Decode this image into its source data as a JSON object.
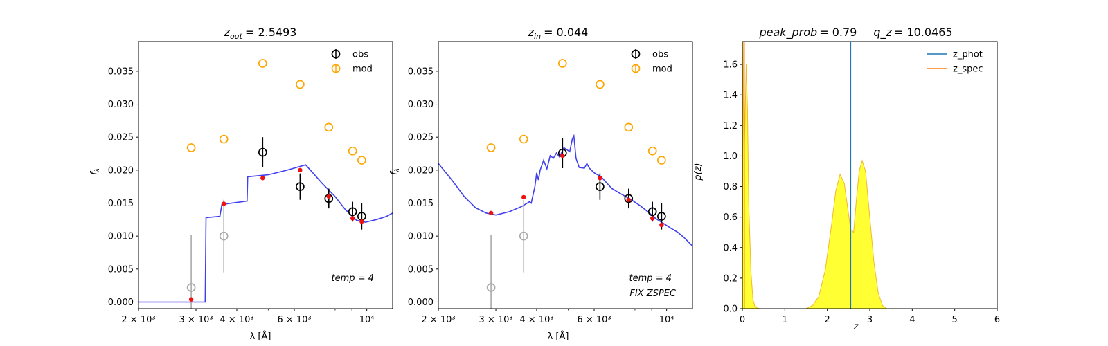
{
  "chart_data": [
    {
      "type": "scatter",
      "title_base": "z",
      "title_sub": "out",
      "title_value": "= 2.5493",
      "xlabel": "λ [Å]",
      "ylabel": "f",
      "ylabel_sub": "λ",
      "x_scale": "log",
      "xlim": [
        2000,
        12000
      ],
      "ylim": [
        -0.001,
        0.0395
      ],
      "xticks": [
        {
          "v": 2000,
          "label": "2 × 10³"
        },
        {
          "v": 3000,
          "label": "3 × 10³"
        },
        {
          "v": 4000,
          "label": "4 × 10³"
        },
        {
          "v": 6000,
          "label": "6 × 10³"
        },
        {
          "v": 10000,
          "label": "10⁴"
        }
      ],
      "yticks": [
        "0.000",
        "0.005",
        "0.010",
        "0.015",
        "0.020",
        "0.025",
        "0.030",
        "0.035"
      ],
      "ytick_values": [
        0,
        0.005,
        0.01,
        0.015,
        0.02,
        0.025,
        0.03,
        0.035
      ],
      "legend": [
        {
          "name": "obs",
          "color": "#000000"
        },
        {
          "name": "mod",
          "color": "#ffa500"
        }
      ],
      "annotations": [
        "temp = 4"
      ],
      "obs": [
        {
          "x": 2900,
          "y": 0.0022,
          "err": 0.008,
          "color": "#aaaaaa"
        },
        {
          "x": 3650,
          "y": 0.01,
          "err": 0.0055,
          "color": "#aaaaaa"
        },
        {
          "x": 4800,
          "y": 0.0227,
          "err": 0.0023,
          "color": "#000000"
        },
        {
          "x": 6250,
          "y": 0.0175,
          "err": 0.002,
          "color": "#000000"
        },
        {
          "x": 7650,
          "y": 0.0157,
          "err": 0.0015,
          "color": "#000000"
        },
        {
          "x": 9050,
          "y": 0.0137,
          "err": 0.0015,
          "color": "#000000"
        },
        {
          "x": 9650,
          "y": 0.013,
          "err": 0.002,
          "color": "#000000"
        }
      ],
      "mod": [
        {
          "x": 2900,
          "y": 0.0234
        },
        {
          "x": 3650,
          "y": 0.0247
        },
        {
          "x": 4800,
          "y": 0.0362
        },
        {
          "x": 6250,
          "y": 0.033
        },
        {
          "x": 7650,
          "y": 0.0265
        },
        {
          "x": 9050,
          "y": 0.0229
        },
        {
          "x": 9650,
          "y": 0.0215
        }
      ],
      "model_points": [
        {
          "x": 2900,
          "y": 0.0004
        },
        {
          "x": 3650,
          "y": 0.0149
        },
        {
          "x": 4800,
          "y": 0.0188
        },
        {
          "x": 6250,
          "y": 0.02
        },
        {
          "x": 7650,
          "y": 0.016
        },
        {
          "x": 9050,
          "y": 0.0127
        },
        {
          "x": 9650,
          "y": 0.0122
        }
      ],
      "sed": [
        [
          2000,
          0.0
        ],
        [
          3200,
          0.0
        ],
        [
          3220,
          0.0128
        ],
        [
          3550,
          0.013
        ],
        [
          3600,
          0.0148
        ],
        [
          4300,
          0.0153
        ],
        [
          4320,
          0.019
        ],
        [
          5000,
          0.0193
        ],
        [
          5700,
          0.02
        ],
        [
          6500,
          0.0208
        ],
        [
          7300,
          0.018
        ],
        [
          8000,
          0.016
        ],
        [
          8600,
          0.014
        ],
        [
          9300,
          0.0124
        ],
        [
          9900,
          0.0121
        ],
        [
          10700,
          0.0125
        ],
        [
          11500,
          0.013
        ],
        [
          12000,
          0.0135
        ]
      ]
    },
    {
      "type": "scatter",
      "title_base": "z",
      "title_sub": "in",
      "title_value": "= 0.044",
      "xlabel": "λ [Å]",
      "ylabel": "f",
      "ylabel_sub": "λ",
      "x_scale": "log",
      "xlim": [
        2000,
        12000
      ],
      "ylim": [
        -0.001,
        0.0395
      ],
      "xticks": [
        {
          "v": 2000,
          "label": "2 × 10³"
        },
        {
          "v": 3000,
          "label": "3 × 10³"
        },
        {
          "v": 4000,
          "label": "4 × 10³"
        },
        {
          "v": 6000,
          "label": "6 × 10³"
        },
        {
          "v": 10000,
          "label": "10⁴"
        }
      ],
      "yticks": [
        "0.000",
        "0.005",
        "0.010",
        "0.015",
        "0.020",
        "0.025",
        "0.030",
        "0.035"
      ],
      "ytick_values": [
        0,
        0.005,
        0.01,
        0.015,
        0.02,
        0.025,
        0.03,
        0.035
      ],
      "legend": [
        {
          "name": "obs",
          "color": "#000000"
        },
        {
          "name": "mod",
          "color": "#ffa500"
        }
      ],
      "annotations": [
        "temp = 4",
        "FIX ZSPEC"
      ],
      "obs": [
        {
          "x": 2900,
          "y": 0.0022,
          "err": 0.008,
          "color": "#aaaaaa"
        },
        {
          "x": 3650,
          "y": 0.01,
          "err": 0.0055,
          "color": "#aaaaaa"
        },
        {
          "x": 4800,
          "y": 0.0226,
          "err": 0.0023,
          "color": "#000000"
        },
        {
          "x": 6250,
          "y": 0.0175,
          "err": 0.002,
          "color": "#000000"
        },
        {
          "x": 7650,
          "y": 0.0157,
          "err": 0.0015,
          "color": "#000000"
        },
        {
          "x": 9050,
          "y": 0.0137,
          "err": 0.0015,
          "color": "#000000"
        },
        {
          "x": 9650,
          "y": 0.013,
          "err": 0.002,
          "color": "#000000"
        }
      ],
      "mod": [
        {
          "x": 2900,
          "y": 0.0234
        },
        {
          "x": 3650,
          "y": 0.0247
        },
        {
          "x": 4800,
          "y": 0.0362
        },
        {
          "x": 6250,
          "y": 0.033
        },
        {
          "x": 7650,
          "y": 0.0265
        },
        {
          "x": 9050,
          "y": 0.0229
        },
        {
          "x": 9650,
          "y": 0.0215
        }
      ],
      "model_points": [
        {
          "x": 2900,
          "y": 0.0135
        },
        {
          "x": 3650,
          "y": 0.0159
        },
        {
          "x": 4800,
          "y": 0.0222
        },
        {
          "x": 6250,
          "y": 0.0188
        },
        {
          "x": 7650,
          "y": 0.0155
        },
        {
          "x": 9050,
          "y": 0.0127
        },
        {
          "x": 9650,
          "y": 0.0117
        }
      ],
      "sed": [
        [
          2000,
          0.021
        ],
        [
          2200,
          0.0185
        ],
        [
          2400,
          0.016
        ],
        [
          2600,
          0.0143
        ],
        [
          2800,
          0.0135
        ],
        [
          3000,
          0.0132
        ],
        [
          3300,
          0.0137
        ],
        [
          3600,
          0.0145
        ],
        [
          3800,
          0.0152
        ],
        [
          3850,
          0.015
        ],
        [
          3950,
          0.0175
        ],
        [
          4000,
          0.0196
        ],
        [
          4050,
          0.0185
        ],
        [
          4100,
          0.02
        ],
        [
          4200,
          0.0215
        ],
        [
          4300,
          0.0202
        ],
        [
          4400,
          0.0222
        ],
        [
          4500,
          0.0218
        ],
        [
          4600,
          0.0226
        ],
        [
          4700,
          0.022
        ],
        [
          4850,
          0.0234
        ],
        [
          5050,
          0.0228
        ],
        [
          5150,
          0.0248
        ],
        [
          5200,
          0.0252
        ],
        [
          5280,
          0.0218
        ],
        [
          5400,
          0.0204
        ],
        [
          5600,
          0.0203
        ],
        [
          5700,
          0.021
        ],
        [
          5800,
          0.0203
        ],
        [
          6000,
          0.0196
        ],
        [
          6300,
          0.019
        ],
        [
          6800,
          0.0172
        ],
        [
          7300,
          0.0163
        ],
        [
          7800,
          0.0155
        ],
        [
          8300,
          0.0146
        ],
        [
          8800,
          0.0136
        ],
        [
          9300,
          0.0126
        ],
        [
          9800,
          0.0119
        ],
        [
          10300,
          0.0112
        ],
        [
          10800,
          0.0106
        ],
        [
          11300,
          0.0098
        ],
        [
          12000,
          0.0085
        ]
      ]
    },
    {
      "type": "area",
      "title_base": "peak_prob",
      "title_value": "= 0.79",
      "title2_base": "q_z",
      "title2_value": "= 10.0465",
      "xlabel": "z",
      "ylabel": "p(z)",
      "xlim": [
        0,
        6
      ],
      "ylim": [
        0,
        1.75
      ],
      "xticks": [
        {
          "v": 0,
          "label": "0"
        },
        {
          "v": 1,
          "label": "1"
        },
        {
          "v": 2,
          "label": "2"
        },
        {
          "v": 3,
          "label": "3"
        },
        {
          "v": 4,
          "label": "4"
        },
        {
          "v": 5,
          "label": "5"
        },
        {
          "v": 6,
          "label": "6"
        }
      ],
      "yticks": [
        "0.0",
        "0.2",
        "0.4",
        "0.6",
        "0.8",
        "1.0",
        "1.2",
        "1.4",
        "1.6"
      ],
      "ytick_values": [
        0,
        0.2,
        0.4,
        0.6,
        0.8,
        1.0,
        1.2,
        1.4,
        1.6
      ],
      "legend": [
        {
          "name": "z_phot",
          "color": "#1f77b4"
        },
        {
          "name": "z_spec",
          "color": "#ff7f0e"
        }
      ],
      "z_phot": 2.5493,
      "z_spec": 0.044,
      "pz": [
        [
          0.0,
          0.0
        ],
        [
          0.02,
          1.75
        ],
        [
          0.04,
          1.0
        ],
        [
          0.06,
          1.2
        ],
        [
          0.09,
          1.6
        ],
        [
          0.12,
          1.3
        ],
        [
          0.15,
          0.7
        ],
        [
          0.2,
          0.25
        ],
        [
          0.25,
          0.06
        ],
        [
          0.3,
          0.01
        ],
        [
          0.4,
          0.0
        ],
        [
          1.5,
          0.0
        ],
        [
          1.65,
          0.02
        ],
        [
          1.8,
          0.08
        ],
        [
          1.95,
          0.25
        ],
        [
          2.1,
          0.55
        ],
        [
          2.2,
          0.77
        ],
        [
          2.3,
          0.88
        ],
        [
          2.4,
          0.82
        ],
        [
          2.5,
          0.62
        ],
        [
          2.55,
          0.52
        ],
        [
          2.62,
          0.5
        ],
        [
          2.68,
          0.7
        ],
        [
          2.75,
          0.9
        ],
        [
          2.82,
          0.97
        ],
        [
          2.9,
          0.9
        ],
        [
          3.0,
          0.6
        ],
        [
          3.1,
          0.3
        ],
        [
          3.2,
          0.1
        ],
        [
          3.3,
          0.02
        ],
        [
          3.4,
          0.0
        ],
        [
          5.0,
          0.0
        ]
      ]
    }
  ]
}
